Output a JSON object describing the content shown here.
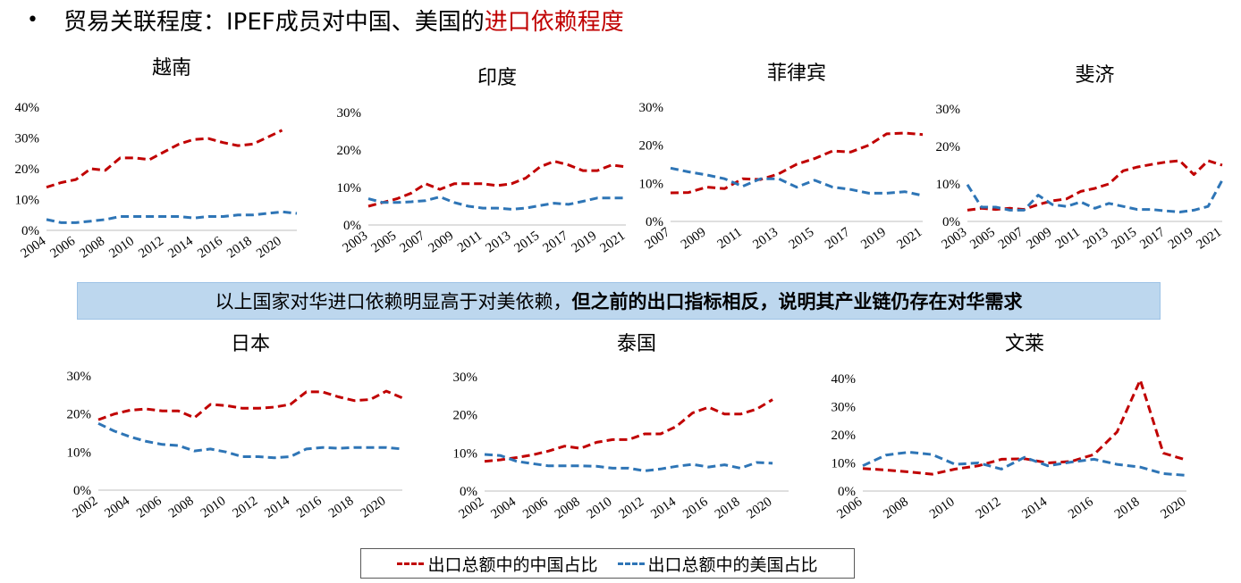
{
  "header": {
    "bullet": "•",
    "title_main": "贸易关联程度：IPEF成员对中国、美国的",
    "title_accent": "进口依赖程度"
  },
  "banner": {
    "text_normal": "以上国家对华进口依赖明显高于对美依赖，",
    "text_bold": "但之前的出口指标相反，说明其产业链仍存在对华需求"
  },
  "legend": {
    "china_label": "出口总额中的中国占比",
    "us_label": "出口总额中的美国占比"
  },
  "colors": {
    "china": "#c00000",
    "us": "#2e75b6",
    "accent": "#c00000",
    "banner_bg": "#bdd7ee"
  },
  "chart_data": [
    {
      "id": "vietnam",
      "type": "line",
      "title": "越南",
      "x": [
        2004,
        2005,
        2006,
        2007,
        2008,
        2009,
        2010,
        2011,
        2012,
        2013,
        2014,
        2015,
        2016,
        2017,
        2018,
        2019,
        2020,
        2021
      ],
      "xticks": [
        "2004",
        "2006",
        "2008",
        "2010",
        "2012",
        "2014",
        "2016",
        "2018",
        "2020"
      ],
      "ylim": [
        0,
        40
      ],
      "yticks": [
        "0%",
        "10%",
        "20%",
        "30%",
        "40%"
      ],
      "series": [
        {
          "key": "china",
          "values": [
            14,
            15.5,
            16.5,
            20,
            19.5,
            23.5,
            23.5,
            23,
            25.5,
            28,
            29.5,
            29.8,
            28.5,
            27.5,
            28,
            30.2,
            32.5,
            null
          ]
        },
        {
          "key": "us",
          "values": [
            3.5,
            2.5,
            2.5,
            3,
            3.5,
            4.5,
            4.5,
            4.5,
            4.5,
            4.5,
            4,
            4.5,
            4.5,
            5,
            5,
            5.5,
            6,
            5.5
          ]
        }
      ]
    },
    {
      "id": "india",
      "type": "line",
      "title": "印度",
      "x": [
        2003,
        2004,
        2005,
        2006,
        2007,
        2008,
        2009,
        2010,
        2011,
        2012,
        2013,
        2014,
        2015,
        2016,
        2017,
        2018,
        2019,
        2020,
        2021
      ],
      "xticks": [
        "2003",
        "2005",
        "2007",
        "2009",
        "2011",
        "2013",
        "2015",
        "2017",
        "2019",
        "2021"
      ],
      "ylim": [
        0,
        30
      ],
      "yticks": [
        "0%",
        "10%",
        "20%",
        "30%"
      ],
      "series": [
        {
          "key": "china",
          "values": [
            5,
            6,
            7,
            8.5,
            11,
            9.5,
            11,
            11,
            11,
            10.5,
            11,
            12.5,
            15.5,
            17,
            16,
            14.5,
            14.5,
            16,
            15.5
          ]
        },
        {
          "key": "us",
          "values": [
            7,
            6,
            6,
            6.2,
            6.5,
            7.5,
            6,
            5,
            4.5,
            4.5,
            4.2,
            4.5,
            5.2,
            5.8,
            5.5,
            6.3,
            7.2,
            7.2,
            7.2
          ]
        }
      ]
    },
    {
      "id": "philippines",
      "type": "line",
      "title": "菲律宾",
      "x": [
        2007,
        2008,
        2009,
        2010,
        2011,
        2012,
        2013,
        2014,
        2015,
        2016,
        2017,
        2018,
        2019,
        2020,
        2021
      ],
      "xticks": [
        "2007",
        "2009",
        "2011",
        "2013",
        "2015",
        "2017",
        "2019",
        "2021"
      ],
      "ylim": [
        0,
        30
      ],
      "yticks": [
        "0%",
        "10%",
        "20%",
        "30%"
      ],
      "series": [
        {
          "key": "china",
          "values": [
            7.5,
            7.6,
            9,
            8.6,
            11.2,
            11,
            12.5,
            15,
            16.5,
            18.5,
            18.2,
            20,
            23,
            23.2,
            22.8
          ]
        },
        {
          "key": "us",
          "values": [
            14,
            13,
            12.2,
            11.2,
            9.2,
            11.2,
            11.2,
            9,
            10.8,
            9,
            8.4,
            7.4,
            7.4,
            7.8,
            6.8
          ]
        }
      ]
    },
    {
      "id": "fiji",
      "type": "line",
      "title": "斐济",
      "x": [
        2003,
        2004,
        2005,
        2006,
        2007,
        2008,
        2009,
        2010,
        2011,
        2012,
        2013,
        2014,
        2015,
        2016,
        2017,
        2018,
        2019,
        2020,
        2021
      ],
      "xticks": [
        "2003",
        "2005",
        "2007",
        "2009",
        "2011",
        "2013",
        "2015",
        "2017",
        "2019",
        "2021"
      ],
      "ylim": [
        0,
        30
      ],
      "yticks": [
        "0%",
        "10%",
        "20%",
        "30%"
      ],
      "series": [
        {
          "key": "china",
          "values": [
            3,
            3.5,
            3.2,
            3.5,
            3.2,
            4.5,
            5.5,
            6,
            8,
            8.8,
            10,
            13.5,
            14.5,
            15.2,
            15.8,
            16.2,
            12.5,
            16.2,
            15
          ]
        },
        {
          "key": "us",
          "values": [
            9.8,
            3.8,
            3.8,
            3,
            3,
            7,
            4.5,
            4,
            5.2,
            3.5,
            4.8,
            4,
            3.2,
            3.2,
            2.8,
            2.5,
            3,
            4,
            11
          ]
        }
      ]
    },
    {
      "id": "japan",
      "type": "line",
      "title": "日本",
      "x": [
        2002,
        2003,
        2004,
        2005,
        2006,
        2007,
        2008,
        2009,
        2010,
        2011,
        2012,
        2013,
        2014,
        2015,
        2016,
        2017,
        2018,
        2019,
        2020,
        2021
      ],
      "xticks": [
        "2002",
        "2004",
        "2006",
        "2008",
        "2010",
        "2012",
        "2014",
        "2016",
        "2018",
        "2020"
      ],
      "ylim": [
        0,
        30
      ],
      "yticks": [
        "0%",
        "10%",
        "20%",
        "30%"
      ],
      "series": [
        {
          "key": "china",
          "values": [
            18.5,
            20,
            21,
            21.3,
            20.8,
            20.8,
            19,
            22.5,
            22.2,
            21.5,
            21.5,
            21.8,
            22.5,
            25.8,
            25.8,
            24.5,
            23.5,
            23.8,
            26,
            24.2
          ]
        },
        {
          "key": "us",
          "values": [
            17.5,
            15.5,
            14,
            12.8,
            12,
            11.7,
            10.3,
            10.8,
            10,
            8.8,
            8.8,
            8.5,
            8.8,
            10.8,
            11.2,
            11,
            11.2,
            11.2,
            11.2,
            10.8
          ]
        }
      ]
    },
    {
      "id": "thailand",
      "type": "line",
      "title": "泰国",
      "x": [
        2002,
        2003,
        2004,
        2005,
        2006,
        2007,
        2008,
        2009,
        2010,
        2011,
        2012,
        2013,
        2014,
        2015,
        2016,
        2017,
        2018,
        2019,
        2020,
        2021
      ],
      "xticks": [
        "2002",
        "2004",
        "2006",
        "2008",
        "2010",
        "2012",
        "2014",
        "2016",
        "2018",
        "2020"
      ],
      "ylim": [
        0,
        30
      ],
      "yticks": [
        "0%",
        "10%",
        "20%",
        "30%"
      ],
      "series": [
        {
          "key": "china",
          "values": [
            7.8,
            8.2,
            8.8,
            9.5,
            10.5,
            11.8,
            11.2,
            12.8,
            13.5,
            13.5,
            15,
            15,
            17,
            20.5,
            22,
            20.2,
            20.2,
            21.5,
            24,
            null
          ]
        },
        {
          "key": "us",
          "values": [
            9.6,
            9.3,
            7.8,
            7.2,
            6.6,
            6.6,
            6.6,
            6.5,
            6,
            6,
            5.3,
            5.8,
            6.5,
            7,
            6.3,
            6.9,
            6,
            7.5,
            7.3,
            null
          ]
        }
      ]
    },
    {
      "id": "brunei",
      "type": "line",
      "title": "文莱",
      "x": [
        2006,
        2007,
        2008,
        2009,
        2010,
        2011,
        2012,
        2013,
        2014,
        2015,
        2016,
        2017,
        2018,
        2019,
        2020
      ],
      "xticks": [
        "2006",
        "2008",
        "2010",
        "2012",
        "2014",
        "2016",
        "2018",
        "2020"
      ],
      "ylim": [
        0,
        40
      ],
      "yticks": [
        "0%",
        "10%",
        "20%",
        "30%",
        "40%"
      ],
      "series": [
        {
          "key": "china",
          "values": [
            8,
            7.5,
            6.8,
            6,
            7.8,
            9,
            11.3,
            11.5,
            10,
            10.5,
            13,
            21,
            39.5,
            13.5,
            11
          ]
        },
        {
          "key": "us",
          "values": [
            9,
            12.8,
            13.8,
            13,
            9.5,
            10,
            7.8,
            12,
            9,
            10.3,
            11.3,
            9.5,
            8.5,
            6.2,
            5.6
          ]
        }
      ]
    }
  ]
}
